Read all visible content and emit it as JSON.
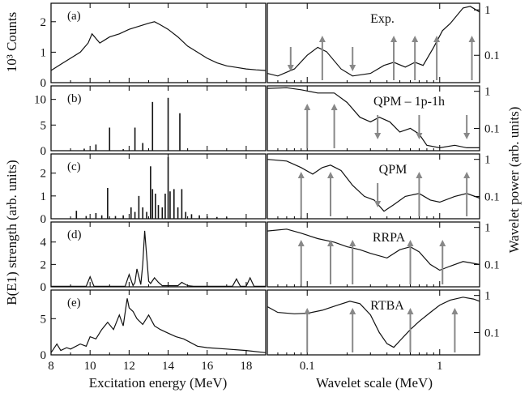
{
  "chart_data": {
    "type": "multi-panel",
    "left_column": {
      "xlabel": "Excitation energy (MeV)",
      "ylabel_top": "10³ Counts",
      "ylabel_main": "B(E1) strength (arb. units)",
      "xlim": [
        8,
        19
      ],
      "xticks": [
        8,
        10,
        12,
        14,
        16,
        18
      ],
      "panels": [
        {
          "label": "(a)",
          "type": "line",
          "ylim": [
            0,
            2.5
          ],
          "yticks": [
            0,
            1,
            2
          ],
          "x": [
            8.0,
            8.5,
            9.0,
            9.5,
            9.9,
            10.1,
            10.5,
            11.0,
            11.5,
            12.0,
            12.5,
            13.0,
            13.3,
            13.6,
            14.0,
            14.5,
            15.0,
            15.5,
            16.0,
            16.5,
            17.0,
            17.5,
            18.0,
            18.5,
            19.0
          ],
          "y": [
            0.4,
            0.6,
            0.8,
            1.0,
            1.3,
            1.6,
            1.3,
            1.5,
            1.6,
            1.75,
            1.85,
            1.95,
            2.0,
            1.9,
            1.75,
            1.5,
            1.2,
            1.0,
            0.8,
            0.65,
            0.55,
            0.5,
            0.45,
            0.42,
            0.4
          ]
        },
        {
          "label": "(b)",
          "type": "stem",
          "ylim": [
            0,
            12
          ],
          "yticks": [
            0,
            5,
            10
          ],
          "stems": [
            [
              9.7,
              0.4
            ],
            [
              10.3,
              1.2
            ],
            [
              11.0,
              4.5
            ],
            [
              11.7,
              0.3
            ],
            [
              12.3,
              4.5
            ],
            [
              12.7,
              1.5
            ],
            [
              13.2,
              9.5
            ],
            [
              14.0,
              10.3
            ],
            [
              14.6,
              7.3
            ]
          ]
        },
        {
          "label": "(c)",
          "type": "stem",
          "ylim": [
            0,
            2.7
          ],
          "yticks": [
            0,
            1,
            2
          ],
          "stems": [
            [
              9.3,
              0.35
            ],
            [
              9.8,
              0.12
            ],
            [
              10.3,
              0.25
            ],
            [
              10.6,
              0.15
            ],
            [
              10.9,
              1.35
            ],
            [
              11.3,
              0.12
            ],
            [
              11.7,
              0.15
            ],
            [
              12.1,
              0.5
            ],
            [
              12.3,
              0.3
            ],
            [
              12.5,
              1.0
            ],
            [
              12.7,
              0.5
            ],
            [
              12.9,
              0.3
            ],
            [
              13.1,
              2.3
            ],
            [
              13.2,
              1.3
            ],
            [
              13.35,
              1.1
            ],
            [
              13.5,
              0.6
            ],
            [
              13.7,
              0.5
            ],
            [
              13.85,
              1.1
            ],
            [
              14.0,
              2.7
            ],
            [
              14.1,
              1.2
            ],
            [
              14.3,
              1.3
            ],
            [
              14.5,
              0.5
            ],
            [
              14.7,
              1.3
            ],
            [
              14.9,
              0.3
            ],
            [
              15.2,
              0.2
            ],
            [
              15.6,
              0.15
            ],
            [
              16.0,
              0.1
            ],
            [
              16.5,
              0.08
            ],
            [
              17.0,
              0.06
            ]
          ]
        },
        {
          "label": "(d)",
          "type": "line",
          "ylim": [
            0,
            5.5
          ],
          "yticks": [
            0,
            2,
            4
          ],
          "x": [
            8.0,
            9.8,
            10.0,
            10.2,
            11.8,
            12.0,
            12.2,
            12.3,
            12.4,
            12.6,
            12.7,
            12.8,
            13.0,
            13.1,
            13.3,
            13.5,
            13.7,
            14.5,
            14.7,
            15.0,
            15.3,
            17.3,
            17.5,
            17.7,
            18.0,
            18.2,
            18.4,
            19.0
          ],
          "y": [
            0.05,
            0.05,
            0.9,
            0.05,
            0.05,
            1.1,
            0.1,
            0.4,
            1.6,
            0.2,
            2.0,
            5.0,
            0.5,
            0.3,
            0.8,
            0.4,
            0.1,
            0.1,
            0.4,
            0.1,
            0.05,
            0.05,
            0.7,
            0.05,
            0.05,
            0.8,
            0.05,
            0.05
          ]
        },
        {
          "label": "(e)",
          "type": "line",
          "ylim": [
            0,
            8.5
          ],
          "yticks": [
            0,
            5
          ],
          "x": [
            8.0,
            8.3,
            8.5,
            8.8,
            9.0,
            9.5,
            9.8,
            10.0,
            10.3,
            10.6,
            10.9,
            11.2,
            11.5,
            11.7,
            11.9,
            12.0,
            12.2,
            12.4,
            12.7,
            13.0,
            13.3,
            13.6,
            14.0,
            14.4,
            14.8,
            15.5,
            16.0,
            17.0,
            18.0,
            19.0
          ],
          "y": [
            0.3,
            1.5,
            0.6,
            1.0,
            0.8,
            1.5,
            1.2,
            2.5,
            2.2,
            3.5,
            4.5,
            3.5,
            5.5,
            4.0,
            7.8,
            6.5,
            6.0,
            5.0,
            4.2,
            5.5,
            4.0,
            3.5,
            3.0,
            2.5,
            2.2,
            1.2,
            1.0,
            0.8,
            0.6,
            0.3
          ]
        }
      ]
    },
    "right_column": {
      "xlabel": "Wavelet scale (MeV)",
      "ylabel": "Wavelet power (arb. units)",
      "xscale": "log",
      "yscale": "log",
      "xlim": [
        0.05,
        2.0
      ],
      "ylim": [
        0.025,
        1.4
      ],
      "xticks": [
        0.1,
        1
      ],
      "xticklabels": [
        "0.1",
        "1"
      ],
      "yticks": [
        1,
        0.1
      ],
      "yticklabels": [
        "1",
        "0.1"
      ],
      "panels": [
        {
          "label": "Exp.",
          "x": [
            0.05,
            0.06,
            0.08,
            0.1,
            0.12,
            0.14,
            0.18,
            0.22,
            0.3,
            0.38,
            0.45,
            0.55,
            0.65,
            0.75,
            0.9,
            1.05,
            1.2,
            1.5,
            1.7,
            2.0
          ],
          "y": [
            0.04,
            0.035,
            0.05,
            0.1,
            0.15,
            0.12,
            0.05,
            0.035,
            0.04,
            0.06,
            0.07,
            0.055,
            0.07,
            0.06,
            0.15,
            0.35,
            0.5,
            1.1,
            1.2,
            0.9
          ],
          "arrows_up": [
            0.13,
            0.45,
            0.65,
            0.95,
            1.75
          ],
          "arrows_down": [
            0.075,
            0.22
          ]
        },
        {
          "label": "QPM – 1p-1h",
          "x": [
            0.05,
            0.07,
            0.09,
            0.12,
            0.16,
            0.2,
            0.25,
            0.3,
            0.35,
            0.42,
            0.5,
            0.6,
            0.7,
            0.8,
            1.0,
            1.3,
            1.6,
            2.0
          ],
          "y": [
            1.2,
            1.25,
            1.1,
            0.9,
            0.9,
            0.5,
            0.2,
            0.15,
            0.2,
            0.15,
            0.08,
            0.1,
            0.07,
            0.035,
            0.03,
            0.035,
            0.03,
            0.03
          ],
          "arrows_up": [
            0.1,
            0.16
          ],
          "arrows_down": [
            0.34,
            0.7,
            1.6
          ]
        },
        {
          "label": "QPM",
          "x": [
            0.05,
            0.07,
            0.09,
            0.11,
            0.13,
            0.15,
            0.18,
            0.22,
            0.27,
            0.32,
            0.38,
            0.45,
            0.55,
            0.7,
            0.85,
            1.0,
            1.3,
            1.6,
            2.0
          ],
          "y": [
            1.0,
            0.9,
            0.6,
            0.4,
            0.6,
            0.7,
            0.5,
            0.2,
            0.1,
            0.08,
            0.04,
            0.06,
            0.1,
            0.12,
            0.08,
            0.07,
            0.1,
            0.12,
            0.09
          ],
          "arrows_up": [
            0.09,
            0.15,
            0.7,
            1.6
          ],
          "arrows_down": [
            0.34
          ]
        },
        {
          "label": "RRPA",
          "x": [
            0.05,
            0.07,
            0.09,
            0.12,
            0.16,
            0.2,
            0.25,
            0.3,
            0.4,
            0.5,
            0.6,
            0.7,
            0.85,
            1.0,
            1.2,
            1.5,
            2.0
          ],
          "y": [
            0.8,
            0.9,
            0.7,
            0.5,
            0.4,
            0.3,
            0.25,
            0.2,
            0.15,
            0.25,
            0.3,
            0.22,
            0.1,
            0.07,
            0.09,
            0.12,
            0.1
          ],
          "arrows_up": [
            0.09,
            0.15,
            0.22,
            0.6,
            1.05
          ]
        },
        {
          "label": "RTBA",
          "x": [
            0.05,
            0.06,
            0.08,
            0.1,
            0.13,
            0.17,
            0.21,
            0.25,
            0.3,
            0.35,
            0.4,
            0.45,
            0.5,
            0.6,
            0.7,
            0.85,
            1.0,
            1.2,
            1.5,
            1.8,
            2.0
          ],
          "y": [
            0.5,
            0.35,
            0.32,
            0.33,
            0.4,
            0.55,
            0.7,
            0.6,
            0.3,
            0.1,
            0.05,
            0.04,
            0.06,
            0.12,
            0.2,
            0.35,
            0.55,
            0.75,
            0.9,
            0.8,
            0.7
          ],
          "arrows_up": [
            0.1,
            0.22,
            0.6,
            1.3
          ]
        }
      ]
    }
  }
}
